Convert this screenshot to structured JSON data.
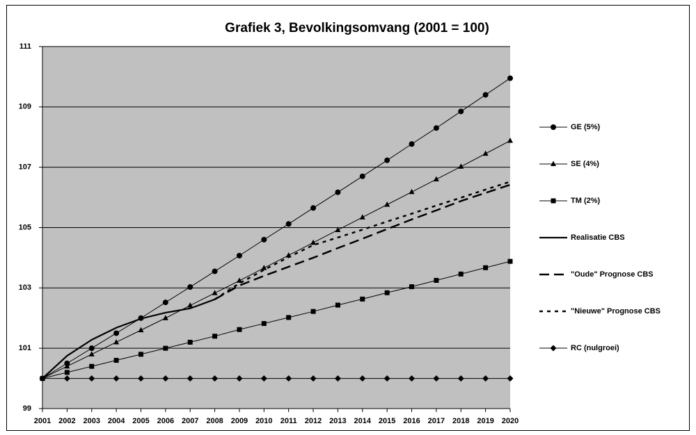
{
  "chart_data": {
    "type": "line",
    "title": "Grafiek 3, Bevolkingsomvang (2001 = 100)",
    "categories": [
      "2001",
      "2002",
      "2003",
      "2004",
      "2005",
      "2006",
      "2007",
      "2008",
      "2009",
      "2010",
      "2011",
      "2012",
      "2013",
      "2014",
      "2015",
      "2016",
      "2017",
      "2018",
      "2019",
      "2020"
    ],
    "ylim": [
      99,
      111
    ],
    "yticks": [
      99,
      101,
      103,
      105,
      107,
      109,
      111
    ],
    "grid": true,
    "legend": "right",
    "series": [
      {
        "name": "GE (5%)",
        "color": "#000000",
        "marker": "circle",
        "line_style": "solid",
        "values": [
          100,
          100.5,
          101.0,
          101.5,
          102.0,
          102.52,
          103.03,
          103.55,
          104.07,
          104.6,
          105.12,
          105.65,
          106.17,
          106.7,
          107.23,
          107.77,
          108.3,
          108.85,
          109.4,
          109.95
        ]
      },
      {
        "name": "SE (4%)",
        "color": "#000000",
        "marker": "triangle",
        "line_style": "solid",
        "values": [
          100,
          100.4,
          100.8,
          101.2,
          101.6,
          102.0,
          102.42,
          102.83,
          103.24,
          103.66,
          104.08,
          104.5,
          104.92,
          105.34,
          105.76,
          106.18,
          106.6,
          107.02,
          107.45,
          107.88
        ]
      },
      {
        "name": "TM (2%)",
        "color": "#000000",
        "marker": "square",
        "line_style": "solid",
        "values": [
          100,
          100.2,
          100.4,
          100.6,
          100.8,
          101.0,
          101.2,
          101.4,
          101.62,
          101.82,
          102.02,
          102.22,
          102.43,
          102.63,
          102.84,
          103.04,
          103.25,
          103.46,
          103.67,
          103.88
        ]
      },
      {
        "name": "Realisatie CBS",
        "color": "#000000",
        "marker": "none",
        "line_style": "solid-thick",
        "values": [
          100,
          100.75,
          101.28,
          101.68,
          101.98,
          102.18,
          102.32,
          102.62,
          null,
          null,
          null,
          null,
          null,
          null,
          null,
          null,
          null,
          null,
          null,
          null
        ]
      },
      {
        "name": "\"Oude\" Prognose CBS",
        "color": "#000000",
        "marker": "none",
        "line_style": "dashed",
        "values": [
          null,
          null,
          null,
          null,
          null,
          null,
          null,
          102.62,
          103.08,
          103.4,
          103.7,
          104.0,
          104.32,
          104.63,
          104.95,
          105.27,
          105.57,
          105.88,
          106.15,
          106.42
        ]
      },
      {
        "name": "\"Nieuwe\" Prognose CBS",
        "color": "#000000",
        "marker": "none",
        "line_style": "dotted",
        "values": [
          null,
          null,
          null,
          null,
          null,
          null,
          null,
          102.62,
          103.15,
          103.6,
          104.02,
          104.42,
          104.67,
          104.93,
          105.2,
          105.46,
          105.73,
          105.99,
          106.26,
          106.52
        ]
      },
      {
        "name": "RC (nulgroei)",
        "color": "#000000",
        "marker": "diamond",
        "line_style": "solid",
        "values": [
          100,
          100,
          100,
          100,
          100,
          100,
          100,
          100,
          100,
          100,
          100,
          100,
          100,
          100,
          100,
          100,
          100,
          100,
          100,
          100
        ]
      }
    ]
  }
}
